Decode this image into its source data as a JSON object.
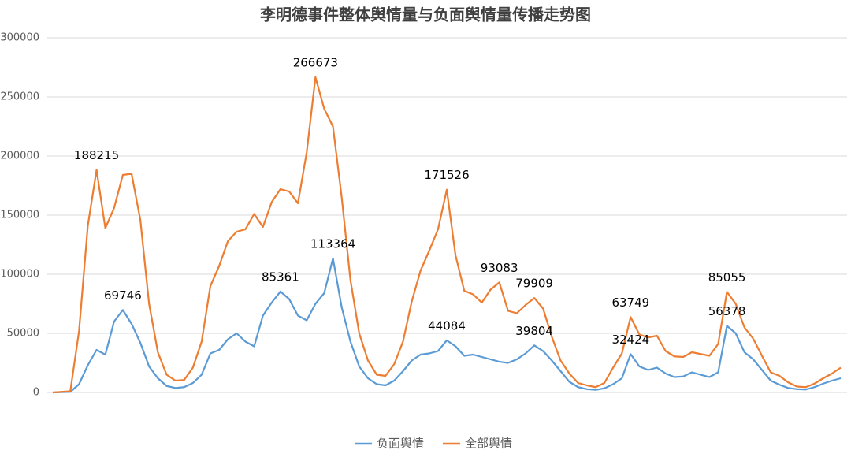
{
  "chart_data": {
    "type": "line",
    "title": "李明德事件整体舆情量与负面舆情量传播走势图",
    "categories": [
      null,
      null,
      null,
      null,
      null,
      null,
      null,
      null,
      null,
      null,
      null,
      null,
      null,
      null,
      null,
      null,
      null,
      null,
      null,
      null,
      null,
      null,
      null,
      null,
      null,
      null,
      null,
      null,
      null,
      null,
      null,
      null,
      null,
      null,
      null,
      null,
      null,
      null,
      null,
      null,
      null,
      null,
      null,
      null,
      null,
      null,
      null,
      null,
      null,
      null,
      null,
      null,
      null,
      null,
      null,
      null,
      null,
      null,
      null,
      null,
      null,
      null,
      null,
      null,
      null,
      null,
      null,
      null,
      null,
      null,
      null,
      null,
      null,
      null,
      null,
      null,
      null,
      null,
      null,
      null,
      null,
      null,
      null,
      null,
      null,
      null,
      null,
      null,
      null,
      null,
      null
    ],
    "series": [
      {
        "name": "负面舆情",
        "color": "#5b9bd5",
        "values": [
          0,
          200,
          500,
          7000,
          23000,
          36000,
          32000,
          60000,
          69746,
          58000,
          42000,
          22000,
          12000,
          5500,
          3800,
          4500,
          8000,
          15000,
          33000,
          36000,
          45000,
          50000,
          43000,
          39000,
          65000,
          76000,
          85361,
          79000,
          65000,
          61000,
          75000,
          84000,
          113364,
          72000,
          43000,
          22000,
          12000,
          7000,
          6000,
          10000,
          18000,
          27000,
          32000,
          33000,
          35000,
          44084,
          39000,
          31000,
          32000,
          30000,
          28000,
          26000,
          25000,
          28000,
          33000,
          39804,
          35000,
          27000,
          18000,
          9000,
          4500,
          2800,
          2200,
          3500,
          7000,
          12000,
          32424,
          22000,
          19000,
          21000,
          16000,
          13000,
          13500,
          17000,
          15000,
          13000,
          17000,
          56378,
          50000,
          34000,
          28000,
          19000,
          10000,
          6500,
          3800,
          2800,
          2500,
          4500,
          7500,
          10000,
          12000
        ],
        "value_labels": [
          null,
          null,
          null,
          null,
          null,
          null,
          null,
          null,
          "69746",
          null,
          null,
          null,
          null,
          null,
          null,
          null,
          null,
          null,
          null,
          null,
          null,
          null,
          null,
          null,
          null,
          null,
          "85361",
          null,
          null,
          null,
          null,
          null,
          "113364",
          null,
          null,
          null,
          null,
          null,
          null,
          null,
          null,
          null,
          null,
          null,
          null,
          "44084",
          null,
          null,
          null,
          null,
          null,
          null,
          null,
          null,
          null,
          "39804",
          null,
          null,
          null,
          null,
          null,
          null,
          null,
          null,
          null,
          null,
          "32424",
          null,
          null,
          null,
          null,
          null,
          null,
          null,
          null,
          null,
          null,
          "56378",
          null,
          null,
          null,
          null,
          null,
          null,
          null,
          null,
          null,
          null,
          null,
          null,
          null
        ]
      },
      {
        "name": "全部舆情",
        "color": "#ed7d31",
        "values": [
          0,
          500,
          1000,
          52000,
          141000,
          188215,
          139000,
          156000,
          184000,
          185000,
          146000,
          75000,
          34000,
          15000,
          10000,
          10500,
          21000,
          43000,
          90000,
          107000,
          128000,
          136000,
          138000,
          151000,
          140000,
          161000,
          172000,
          170000,
          160000,
          203000,
          266673,
          240000,
          225000,
          165000,
          95000,
          50000,
          27000,
          15000,
          14000,
          24000,
          43000,
          77000,
          103000,
          120000,
          138000,
          171526,
          116000,
          86000,
          83000,
          76000,
          87000,
          93083,
          69000,
          67000,
          74000,
          79909,
          71000,
          47000,
          27000,
          16000,
          8000,
          6000,
          4500,
          8000,
          21000,
          33000,
          63749,
          49000,
          46500,
          48000,
          35000,
          30500,
          30000,
          34000,
          32500,
          31000,
          41000,
          85055,
          75000,
          55000,
          45500,
          31000,
          17000,
          14000,
          8500,
          5000,
          4500,
          7500,
          12000,
          16000,
          21000
        ],
        "value_labels": [
          null,
          null,
          null,
          null,
          null,
          "188215",
          null,
          null,
          null,
          null,
          null,
          null,
          null,
          null,
          null,
          null,
          null,
          null,
          null,
          null,
          null,
          null,
          null,
          null,
          null,
          null,
          null,
          null,
          null,
          null,
          "266673",
          null,
          null,
          null,
          null,
          null,
          null,
          null,
          null,
          null,
          null,
          null,
          null,
          null,
          null,
          "171526",
          null,
          null,
          null,
          null,
          null,
          "93083",
          null,
          null,
          null,
          "79909",
          null,
          null,
          null,
          null,
          null,
          null,
          null,
          null,
          null,
          null,
          "63749",
          null,
          null,
          null,
          null,
          null,
          null,
          null,
          null,
          null,
          null,
          "85055",
          null,
          null,
          null,
          null,
          null,
          null,
          null,
          null,
          null,
          null,
          null,
          null,
          null
        ]
      }
    ],
    "ylim": [
      0,
      300000
    ],
    "yticks": [
      0,
      50000,
      100000,
      150000,
      200000,
      250000,
      300000
    ],
    "grid": true,
    "legend": "bottom"
  }
}
